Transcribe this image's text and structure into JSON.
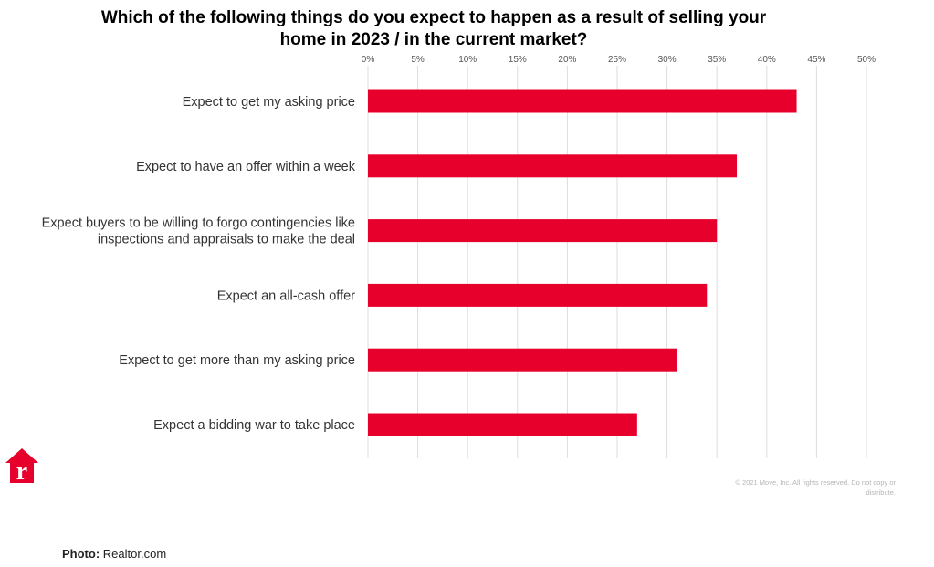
{
  "chart_data": {
    "type": "bar",
    "orientation": "horizontal",
    "title_lines": [
      "Which of the following things do you expect to happen as a result of selling your",
      "home in 2023 / in the current market?"
    ],
    "categories": [
      [
        "Expect to get my asking price"
      ],
      [
        "Expect to have an offer within a week"
      ],
      [
        "Expect buyers to be willing to forgo contingencies like",
        "inspections and appraisals to make the deal"
      ],
      [
        "Expect an all-cash offer"
      ],
      [
        "Expect to get more than my asking price"
      ],
      [
        "Expect a bidding war to take place"
      ]
    ],
    "values": [
      43,
      37,
      35,
      34,
      31,
      27
    ],
    "xlim": [
      0,
      50
    ],
    "ticks": [
      "0%",
      "5%",
      "10%",
      "15%",
      "20%",
      "25%",
      "30%",
      "35%",
      "40%",
      "45%",
      "50%"
    ],
    "tick_values": [
      0,
      5,
      10,
      15,
      20,
      25,
      30,
      35,
      40,
      45,
      50
    ],
    "axis_position": "top",
    "grid": true,
    "bar_color": "#e8002d",
    "grid_color": "#dddddd"
  },
  "copyright_lines": [
    "© 2021 Move, Inc. All rights reserved. Do not copy or",
    "distribute."
  ],
  "photo_credit": {
    "label": "Photo:",
    "source": "Realtor.com"
  },
  "logo": {
    "letter": "r",
    "color": "#e8002d"
  }
}
